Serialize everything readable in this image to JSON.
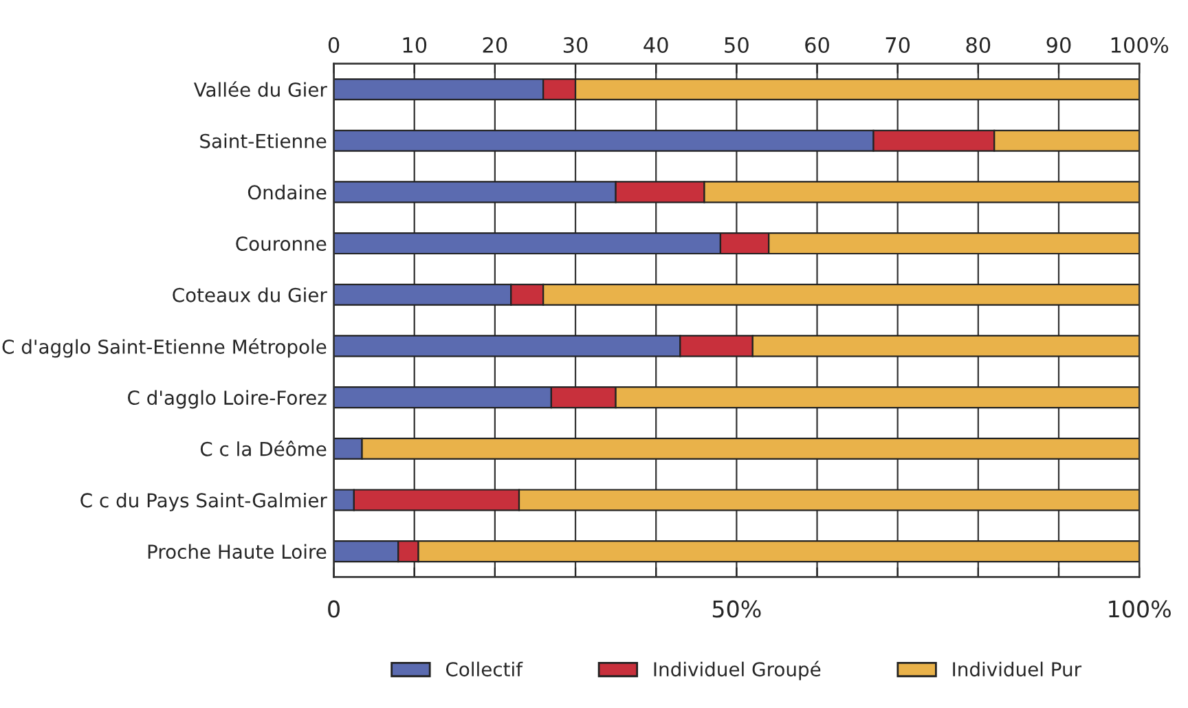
{
  "chart_data": {
    "type": "bar",
    "orientation": "horizontal",
    "stacked": true,
    "categories": [
      "Vallée du Gier",
      "Saint-Etienne",
      "Ondaine",
      "Couronne",
      "Coteaux du Gier",
      "C d'agglo Saint-Etienne Métropole",
      "C d'agglo Loire-Forez",
      "C c la Déôme",
      "C c du Pays Saint-Galmier",
      "Proche Haute Loire"
    ],
    "series": [
      {
        "name": "Collectif",
        "color": "#5b6bb0",
        "values": [
          26,
          67,
          35,
          48,
          22,
          43,
          27,
          3.5,
          2.5,
          8
        ]
      },
      {
        "name": "Individuel Groupé",
        "color": "#c8303c",
        "values": [
          4,
          15,
          11,
          6,
          4,
          9,
          8,
          null,
          20.5,
          2.5
        ]
      },
      {
        "name": "Individuel Pur",
        "color": "#e9b24a",
        "values": [
          70,
          18,
          54,
          46,
          74,
          48,
          65,
          96.5,
          77,
          89.5
        ]
      }
    ],
    "xlim": [
      0,
      100
    ],
    "xticks": [
      0,
      {
        "value": 10,
        "label": null
      },
      {
        "value": 20,
        "label": null
      },
      {
        "value": 30,
        "label": null
      },
      {
        "value": 40,
        "label": null
      },
      {
        "value": 50,
        "label": "50%"
      },
      {
        "value": 60,
        "label": null
      },
      {
        "value": 70,
        "label": null
      },
      {
        "value": 80,
        "label": null
      },
      {
        "value": 90,
        "label": null
      },
      {
        "value": 100,
        "label": "100%"
      }
    ],
    "x2lim": [
      0,
      100
    ],
    "x2ticks": [
      0,
      10,
      20,
      30,
      40,
      50,
      60,
      70,
      80,
      90,
      {
        "value": 100,
        "label": "100%"
      }
    ],
    "grid": "x",
    "legend": "bottom"
  }
}
